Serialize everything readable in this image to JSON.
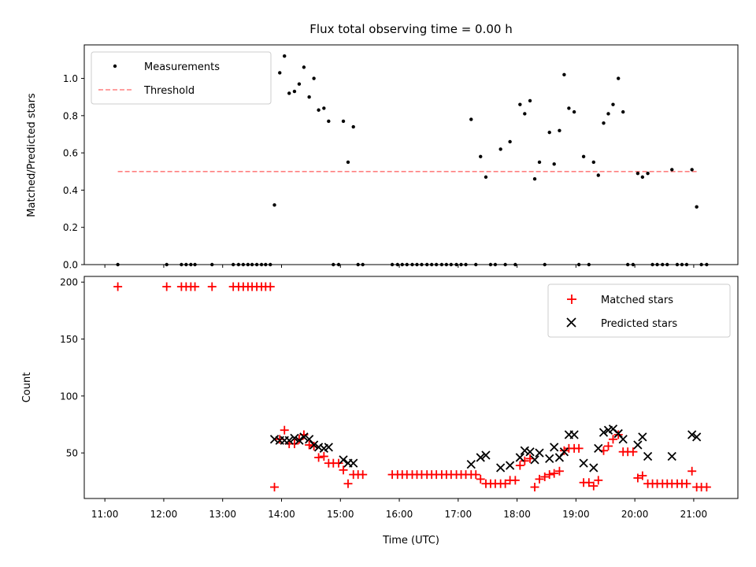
{
  "chart_data": [
    {
      "type": "scatter",
      "title": "Flux total observing time = 0.00 h",
      "xlabel": "",
      "ylabel": "Matched/Predicted stars",
      "xlim": [
        10.65,
        21.75
      ],
      "ylim": [
        0,
        1.18
      ],
      "yticks": [
        "0.0",
        "0.2",
        "0.4",
        "0.6",
        "0.8",
        "1.0"
      ],
      "legend_position": "top-left",
      "series": [
        {
          "name": "Measurements",
          "color": "#000000",
          "marker": "dot",
          "points": [
            [
              11.22,
              0
            ],
            [
              12.05,
              0
            ],
            [
              12.3,
              0
            ],
            [
              12.38,
              0
            ],
            [
              12.46,
              0
            ],
            [
              12.53,
              0
            ],
            [
              12.82,
              0
            ],
            [
              13.18,
              0
            ],
            [
              13.27,
              0
            ],
            [
              13.35,
              0
            ],
            [
              13.43,
              0
            ],
            [
              13.5,
              0
            ],
            [
              13.58,
              0
            ],
            [
              13.66,
              0
            ],
            [
              13.73,
              0
            ],
            [
              13.81,
              0
            ],
            [
              13.88,
              0.32
            ],
            [
              13.97,
              1.03
            ],
            [
              14.05,
              1.12
            ],
            [
              14.13,
              0.92
            ],
            [
              14.22,
              0.93
            ],
            [
              14.3,
              0.97
            ],
            [
              14.38,
              1.06
            ],
            [
              14.47,
              0.9
            ],
            [
              14.55,
              1.0
            ],
            [
              14.63,
              0.83
            ],
            [
              14.72,
              0.84
            ],
            [
              14.8,
              0.77
            ],
            [
              14.88,
              0
            ],
            [
              14.97,
              0
            ],
            [
              15.05,
              0.77
            ],
            [
              15.13,
              0.55
            ],
            [
              15.22,
              0.74
            ],
            [
              15.3,
              0
            ],
            [
              15.38,
              0
            ],
            [
              15.88,
              0
            ],
            [
              15.97,
              0
            ],
            [
              16.05,
              0
            ],
            [
              16.13,
              0
            ],
            [
              16.22,
              0
            ],
            [
              16.3,
              0
            ],
            [
              16.38,
              0
            ],
            [
              16.47,
              0
            ],
            [
              16.55,
              0
            ],
            [
              16.63,
              0
            ],
            [
              16.72,
              0
            ],
            [
              16.8,
              0
            ],
            [
              16.88,
              0
            ],
            [
              16.97,
              0
            ],
            [
              17.05,
              0
            ],
            [
              17.13,
              0
            ],
            [
              17.22,
              0.78
            ],
            [
              17.3,
              0
            ],
            [
              17.38,
              0.58
            ],
            [
              17.47,
              0.47
            ],
            [
              17.55,
              0
            ],
            [
              17.63,
              0
            ],
            [
              17.72,
              0.62
            ],
            [
              17.8,
              0
            ],
            [
              17.88,
              0.66
            ],
            [
              17.97,
              0
            ],
            [
              18.05,
              0.86
            ],
            [
              18.13,
              0.81
            ],
            [
              18.22,
              0.88
            ],
            [
              18.3,
              0.46
            ],
            [
              18.38,
              0.55
            ],
            [
              18.47,
              0
            ],
            [
              18.55,
              0.71
            ],
            [
              18.63,
              0.54
            ],
            [
              18.72,
              0.72
            ],
            [
              18.8,
              1.02
            ],
            [
              18.88,
              0.84
            ],
            [
              18.97,
              0.82
            ],
            [
              19.05,
              0
            ],
            [
              19.13,
              0.58
            ],
            [
              19.22,
              0
            ],
            [
              19.3,
              0.55
            ],
            [
              19.38,
              0.48
            ],
            [
              19.47,
              0.76
            ],
            [
              19.55,
              0.81
            ],
            [
              19.63,
              0.86
            ],
            [
              19.72,
              1.0
            ],
            [
              19.8,
              0.82
            ],
            [
              19.88,
              0
            ],
            [
              19.97,
              0
            ],
            [
              20.05,
              0.49
            ],
            [
              20.13,
              0.47
            ],
            [
              20.22,
              0.49
            ],
            [
              20.3,
              0
            ],
            [
              20.38,
              0
            ],
            [
              20.47,
              0
            ],
            [
              20.55,
              0
            ],
            [
              20.63,
              0.51
            ],
            [
              20.72,
              0
            ],
            [
              20.8,
              0
            ],
            [
              20.88,
              0
            ],
            [
              20.97,
              0.51
            ],
            [
              21.05,
              0.31
            ],
            [
              21.13,
              0
            ],
            [
              21.22,
              0
            ]
          ]
        },
        {
          "name": "Threshold",
          "color": "#ff8080",
          "style": "dashed",
          "points": [
            [
              11.22,
              0.5
            ],
            [
              21.05,
              0.5
            ]
          ]
        }
      ]
    },
    {
      "type": "scatter",
      "title": "",
      "xlabel": "Time (UTC)",
      "ylabel": "Count",
      "xlim": [
        10.65,
        21.75
      ],
      "ylim": [
        10,
        205
      ],
      "yticks": [
        "50",
        "100",
        "150",
        "200"
      ],
      "xticks": [
        "11:00",
        "12:00",
        "13:00",
        "14:00",
        "15:00",
        "16:00",
        "17:00",
        "18:00",
        "19:00",
        "20:00",
        "21:00"
      ],
      "legend_position": "top-right",
      "series": [
        {
          "name": "Matched stars",
          "color": "#ff0000",
          "marker": "plus",
          "points": [
            [
              11.22,
              196
            ],
            [
              12.05,
              196
            ],
            [
              12.3,
              196
            ],
            [
              12.38,
              196
            ],
            [
              12.46,
              196
            ],
            [
              12.53,
              196
            ],
            [
              12.82,
              196
            ],
            [
              13.18,
              196
            ],
            [
              13.27,
              196
            ],
            [
              13.35,
              196
            ],
            [
              13.43,
              196
            ],
            [
              13.5,
              196
            ],
            [
              13.58,
              196
            ],
            [
              13.66,
              196
            ],
            [
              13.73,
              196
            ],
            [
              13.81,
              196
            ],
            [
              13.88,
              20
            ],
            [
              13.97,
              62
            ],
            [
              14.05,
              70
            ],
            [
              14.13,
              58
            ],
            [
              14.22,
              58
            ],
            [
              14.3,
              62
            ],
            [
              14.38,
              66
            ],
            [
              14.47,
              57
            ],
            [
              14.55,
              56
            ],
            [
              14.63,
              46
            ],
            [
              14.72,
              47
            ],
            [
              14.8,
              41
            ],
            [
              14.88,
              41
            ],
            [
              14.97,
              41
            ],
            [
              15.05,
              35
            ],
            [
              15.13,
              23
            ],
            [
              15.22,
              31
            ],
            [
              15.3,
              31
            ],
            [
              15.38,
              31
            ],
            [
              15.88,
              31
            ],
            [
              15.97,
              31
            ],
            [
              16.05,
              31
            ],
            [
              16.13,
              31
            ],
            [
              16.22,
              31
            ],
            [
              16.3,
              31
            ],
            [
              16.38,
              31
            ],
            [
              16.47,
              31
            ],
            [
              16.55,
              31
            ],
            [
              16.63,
              31
            ],
            [
              16.72,
              31
            ],
            [
              16.8,
              31
            ],
            [
              16.88,
              31
            ],
            [
              16.97,
              31
            ],
            [
              17.05,
              31
            ],
            [
              17.13,
              31
            ],
            [
              17.22,
              31
            ],
            [
              17.3,
              31
            ],
            [
              17.38,
              27
            ],
            [
              17.47,
              23
            ],
            [
              17.55,
              23
            ],
            [
              17.63,
              23
            ],
            [
              17.72,
              23
            ],
            [
              17.8,
              23
            ],
            [
              17.88,
              26
            ],
            [
              17.97,
              26
            ],
            [
              18.05,
              39
            ],
            [
              18.13,
              43
            ],
            [
              18.22,
              45
            ],
            [
              18.3,
              20
            ],
            [
              18.38,
              27
            ],
            [
              18.47,
              29
            ],
            [
              18.55,
              31
            ],
            [
              18.63,
              32
            ],
            [
              18.72,
              34
            ],
            [
              18.8,
              52
            ],
            [
              18.88,
              54
            ],
            [
              18.97,
              54
            ],
            [
              19.05,
              54
            ],
            [
              19.13,
              24
            ],
            [
              19.22,
              24
            ],
            [
              19.3,
              21
            ],
            [
              19.38,
              26
            ],
            [
              19.47,
              52
            ],
            [
              19.55,
              56
            ],
            [
              19.63,
              62
            ],
            [
              19.72,
              66
            ],
            [
              19.8,
              51
            ],
            [
              19.88,
              51
            ],
            [
              19.97,
              51
            ],
            [
              20.05,
              28
            ],
            [
              20.13,
              30
            ],
            [
              20.22,
              23
            ],
            [
              20.3,
              23
            ],
            [
              20.38,
              23
            ],
            [
              20.47,
              23
            ],
            [
              20.55,
              23
            ],
            [
              20.63,
              23
            ],
            [
              20.72,
              23
            ],
            [
              20.8,
              23
            ],
            [
              20.88,
              23
            ],
            [
              20.97,
              34
            ],
            [
              21.05,
              20
            ],
            [
              21.13,
              20
            ],
            [
              21.22,
              20
            ]
          ]
        },
        {
          "name": "Predicted stars",
          "color": "#000000",
          "marker": "cross",
          "points": [
            [
              13.88,
              62
            ],
            [
              13.97,
              61
            ],
            [
              14.05,
              61
            ],
            [
              14.13,
              61
            ],
            [
              14.22,
              63
            ],
            [
              14.3,
              61
            ],
            [
              14.38,
              64
            ],
            [
              14.47,
              62
            ],
            [
              14.55,
              57
            ],
            [
              14.63,
              55
            ],
            [
              14.72,
              54
            ],
            [
              14.8,
              55
            ],
            [
              15.05,
              44
            ],
            [
              15.13,
              41
            ],
            [
              15.22,
              41
            ],
            [
              17.22,
              40
            ],
            [
              17.38,
              46
            ],
            [
              17.47,
              48
            ],
            [
              17.72,
              37
            ],
            [
              17.88,
              39
            ],
            [
              18.05,
              46
            ],
            [
              18.13,
              52
            ],
            [
              18.22,
              51
            ],
            [
              18.3,
              44
            ],
            [
              18.38,
              50
            ],
            [
              18.55,
              45
            ],
            [
              18.63,
              55
            ],
            [
              18.72,
              46
            ],
            [
              18.8,
              51
            ],
            [
              18.88,
              66
            ],
            [
              18.97,
              66
            ],
            [
              19.13,
              41
            ],
            [
              19.3,
              37
            ],
            [
              19.38,
              54
            ],
            [
              19.47,
              68
            ],
            [
              19.55,
              70
            ],
            [
              19.63,
              71
            ],
            [
              19.72,
              67
            ],
            [
              19.8,
              62
            ],
            [
              20.05,
              57
            ],
            [
              20.13,
              64
            ],
            [
              20.22,
              47
            ],
            [
              20.63,
              47
            ],
            [
              20.97,
              66
            ],
            [
              21.05,
              64
            ]
          ]
        }
      ]
    }
  ]
}
